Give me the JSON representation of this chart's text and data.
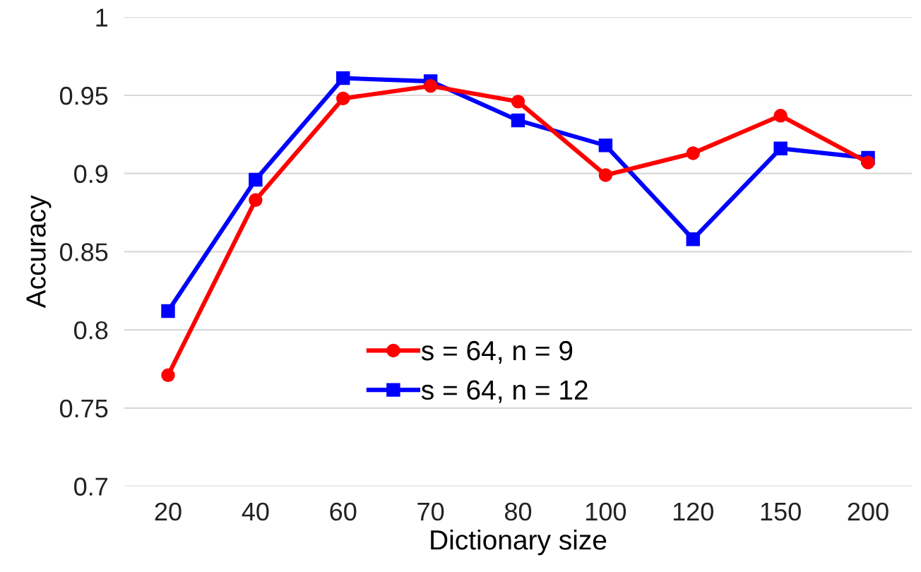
{
  "chart_data": {
    "type": "line",
    "xlabel": "Dictionary size",
    "ylabel": "Accuracy",
    "categories": [
      "20",
      "40",
      "60",
      "70",
      "80",
      "100",
      "120",
      "150",
      "200"
    ],
    "series": [
      {
        "name": "s = 64, n = 9",
        "color": "#ff0000",
        "marker": "circle",
        "values": [
          0.771,
          0.883,
          0.948,
          0.956,
          0.946,
          0.899,
          0.913,
          0.937,
          0.907
        ]
      },
      {
        "name": "s = 64, n = 12",
        "color": "#0000ff",
        "marker": "square",
        "values": [
          0.812,
          0.896,
          0.961,
          0.959,
          0.934,
          0.918,
          0.858,
          0.916,
          0.91
        ]
      }
    ],
    "ylim": [
      0.7,
      1
    ],
    "yticks": [
      0.7,
      0.75,
      0.8,
      0.85,
      0.9,
      0.95,
      1
    ],
    "grid": "y",
    "legend": "bottom",
    "line_style": "solid"
  }
}
